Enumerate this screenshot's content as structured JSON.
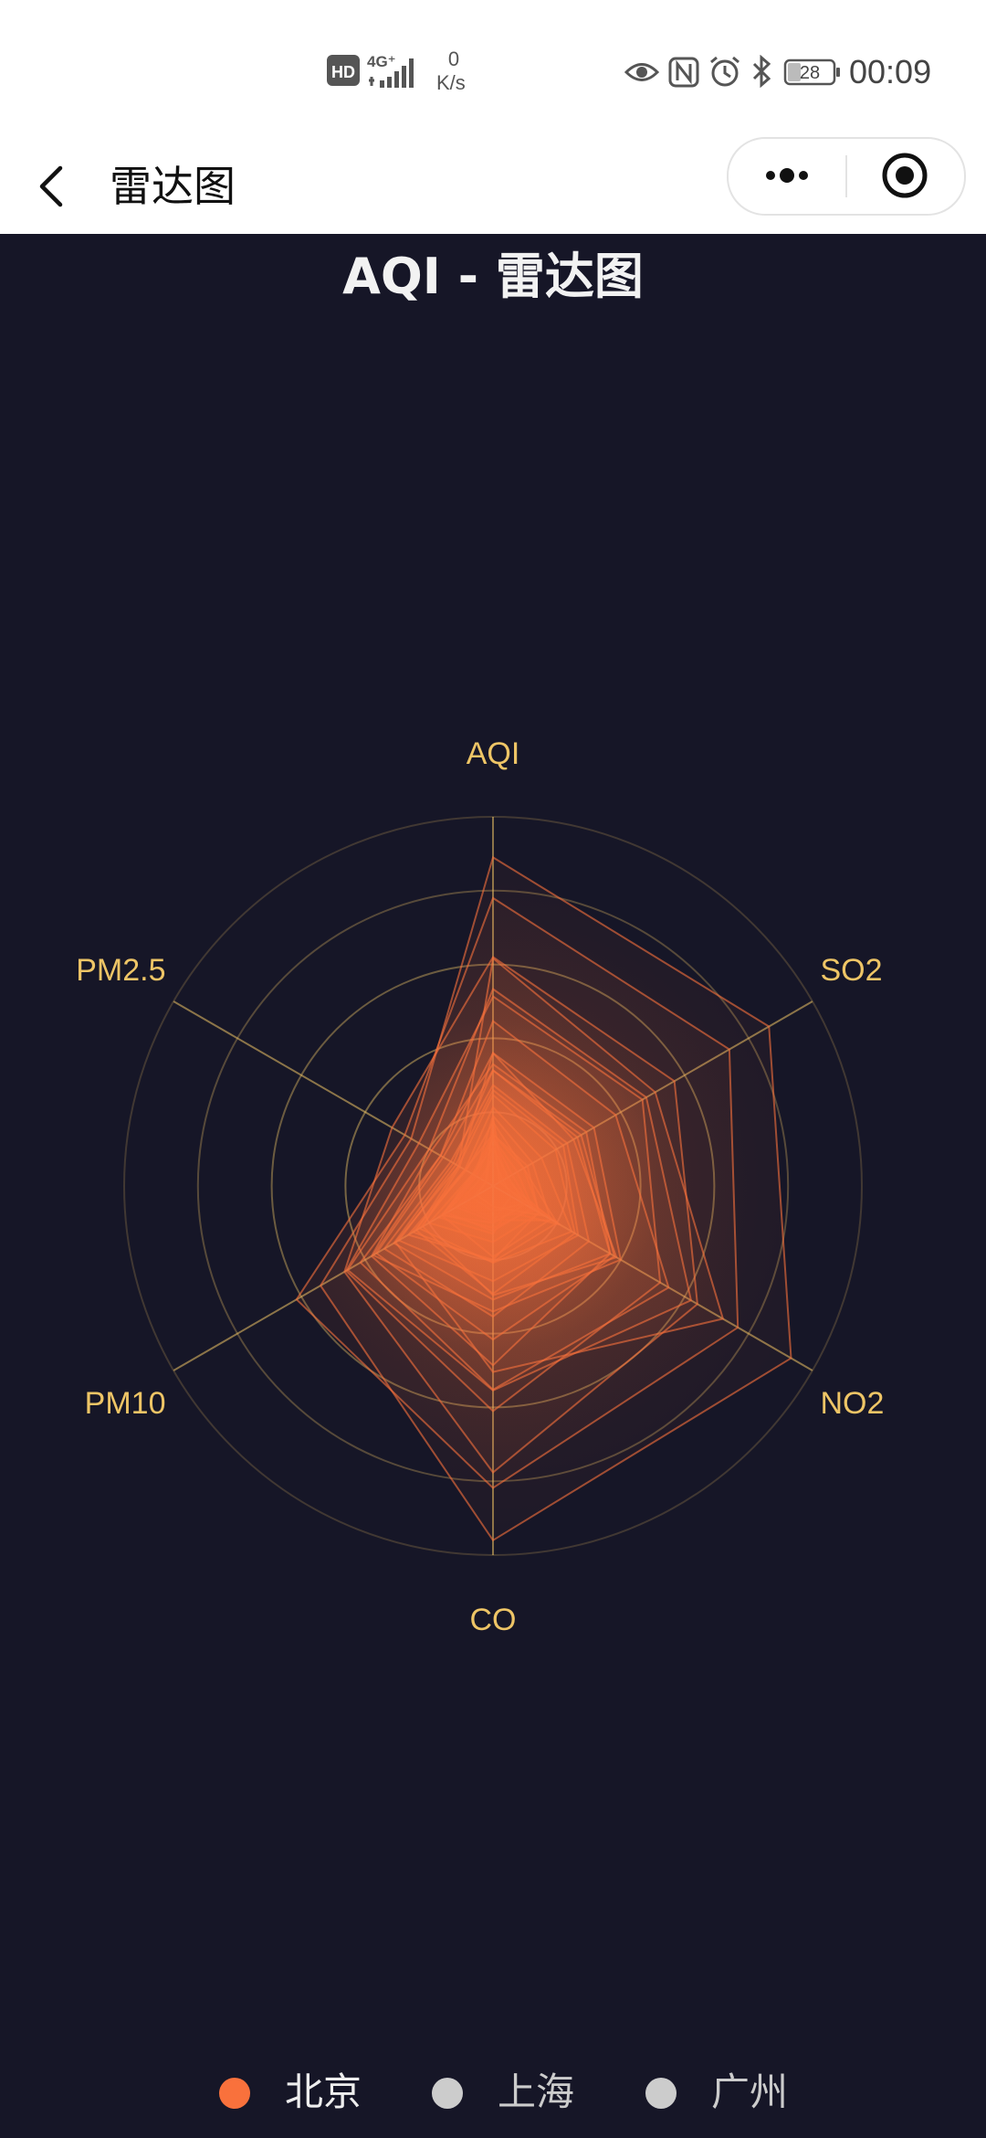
{
  "status_bar": {
    "hd_badge": "HD",
    "network": "4G⁺",
    "speed_value": "0",
    "speed_unit": "K/s",
    "battery": "28",
    "time": "00:09"
  },
  "nav": {
    "title": "雷达图"
  },
  "chart_data": {
    "type": "radar",
    "title": "AQI - 雷达图",
    "indicators": [
      {
        "name": "AQI",
        "max": 300
      },
      {
        "name": "SO2",
        "max": 250
      },
      {
        "name": "NO2",
        "max": 300
      },
      {
        "name": "CO",
        "max": 5
      },
      {
        "name": "PM10",
        "max": 200
      },
      {
        "name": "PM2.5",
        "max": 250
      }
    ],
    "split_number": 5,
    "shape": "circle",
    "legend": [
      {
        "name": "北京",
        "selected": true,
        "color": "#F9713C"
      },
      {
        "name": "上海",
        "selected": false,
        "color": "#cccccc"
      },
      {
        "name": "广州",
        "selected": false,
        "color": "#cccccc"
      }
    ],
    "series": [
      {
        "name": "北京",
        "records": [
          [
            55,
            9,
            56,
            0.46,
            18,
            6
          ],
          [
            25,
            11,
            21,
            0.65,
            34,
            9
          ],
          [
            56,
            7,
            63,
            0.3,
            14,
            5
          ],
          [
            33,
            7,
            29,
            0.33,
            16,
            6
          ],
          [
            42,
            24,
            44,
            0.76,
            40,
            16
          ],
          [
            82,
            58,
            90,
            1.77,
            68,
            33
          ],
          [
            74,
            49,
            77,
            1.46,
            48,
            27
          ],
          [
            78,
            55,
            80,
            1.29,
            59,
            29
          ],
          [
            267,
            216,
            280,
            4.8,
            108,
            64
          ],
          [
            185,
            127,
            216,
            2.52,
            61,
            27
          ],
          [
            39,
            19,
            38,
            0.57,
            31,
            15
          ],
          [
            41,
            11,
            40,
            0.43,
            21,
            7
          ],
          [
            64,
            38,
            74,
            1.04,
            46,
            22
          ],
          [
            108,
            79,
            120,
            1.7,
            75,
            41
          ],
          [
            108,
            63,
            116,
            1.48,
            44,
            26
          ],
          [
            33,
            6,
            29,
            0.34,
            13,
            5
          ],
          [
            94,
            66,
            110,
            1.54,
            62,
            31
          ],
          [
            186,
            142,
            192,
            3.88,
            93,
            79
          ],
          [
            57,
            31,
            54,
            0.96,
            32,
            14
          ],
          [
            22,
            8,
            17,
            0.48,
            23,
            10
          ],
          [
            39,
            15,
            36,
            0.61,
            29,
            13
          ],
          [
            94,
            69,
            114,
            2.08,
            73,
            39
          ],
          [
            99,
            73,
            110,
            2.43,
            76,
            48
          ],
          [
            31,
            12,
            30,
            0.5,
            32,
            16
          ],
          [
            42,
            27,
            43,
            1.0,
            53,
            22
          ],
          [
            154,
            117,
            157,
            3.05,
            92,
            58
          ],
          [
            234,
            185,
            230,
            4.09,
            123,
            69
          ],
          [
            160,
            120,
            186,
            2.77,
            91,
            50
          ],
          [
            134,
            96,
            165,
            2.76,
            83,
            41
          ],
          [
            52,
            24,
            60,
            1.03,
            50,
            21
          ],
          [
            46,
            5,
            49,
            0.28,
            10,
            6
          ]
        ]
      }
    ]
  }
}
